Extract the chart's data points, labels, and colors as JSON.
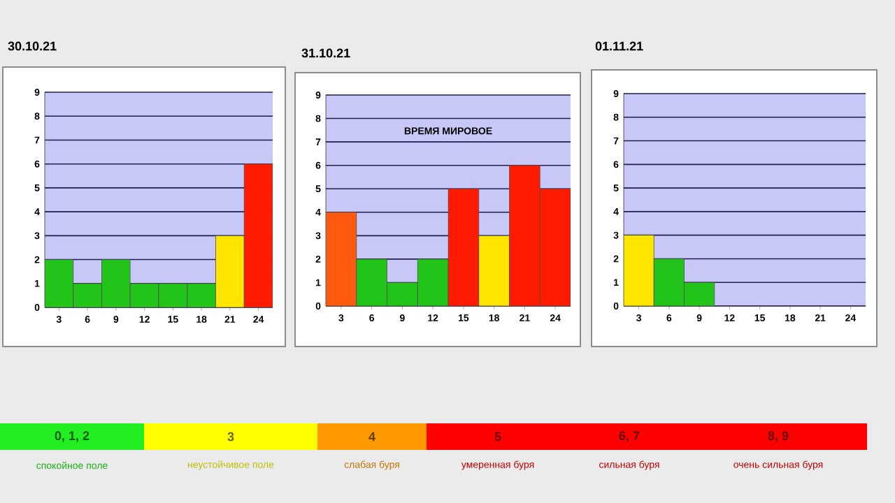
{
  "chart_data": [
    {
      "type": "bar",
      "title": "30.10.21",
      "categories": [
        "3",
        "6",
        "9",
        "12",
        "15",
        "18",
        "21",
        "24"
      ],
      "values": [
        2,
        1,
        2,
        1,
        1,
        1,
        3,
        6
      ],
      "colors": [
        "#22c41a",
        "#22c41a",
        "#22c41a",
        "#22c41a",
        "#22c41a",
        "#22c41a",
        "#ffe600",
        "#ff1a00"
      ],
      "ylim": [
        0,
        9
      ],
      "yticks": [
        0,
        1,
        2,
        3,
        4,
        5,
        6,
        7,
        8,
        9
      ],
      "grid": "y"
    },
    {
      "type": "bar",
      "title": "31.10.21",
      "categories": [
        "3",
        "6",
        "9",
        "12",
        "15",
        "18",
        "21",
        "24"
      ],
      "values": [
        4,
        2,
        1,
        2,
        5,
        3,
        6,
        5
      ],
      "colors": [
        "#ff5a10",
        "#22c41a",
        "#22c41a",
        "#22c41a",
        "#ff1a00",
        "#ffe600",
        "#ff1a00",
        "#ff1a00"
      ],
      "ylim": [
        0,
        9
      ],
      "yticks": [
        0,
        1,
        2,
        3,
        4,
        5,
        6,
        7,
        8,
        9
      ],
      "grid": "y",
      "annotations": [
        "ВРЕМЯ МИРОВОЕ"
      ]
    },
    {
      "type": "bar",
      "title": "01.11.21",
      "categories": [
        "3",
        "6",
        "9",
        "12",
        "15",
        "18",
        "21",
        "24"
      ],
      "values": [
        3,
        2,
        1,
        null,
        null,
        null,
        null,
        null
      ],
      "colors": [
        "#ffe600",
        "#22c41a",
        "#22c41a",
        null,
        null,
        null,
        null,
        null
      ],
      "ylim": [
        0,
        9
      ],
      "yticks": [
        0,
        1,
        2,
        3,
        4,
        5,
        6,
        7,
        8,
        9
      ],
      "grid": "y"
    },
    {
      "type": "other",
      "categories": [
        "0, 1, 2",
        "3",
        "4",
        "5",
        "6, 7",
        "8, 9"
      ],
      "colors": [
        "#22ee22",
        "#ffff00",
        "#ff9900",
        "#ff0000",
        "#ff0000",
        "#ff0000"
      ],
      "annotations": [
        "спокойное поле",
        "неустойчивое поле",
        "слабая буря",
        "умеренная буря",
        "сильная буря",
        "очень сильная буря"
      ]
    }
  ]
}
